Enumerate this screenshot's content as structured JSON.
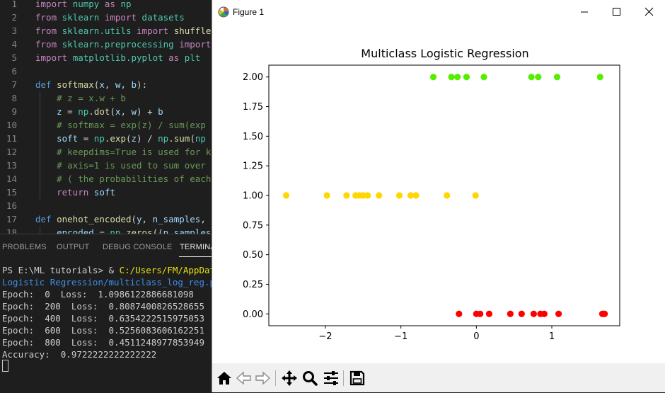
{
  "editor": {
    "lines": [
      {
        "n": "1",
        "tokens": [
          [
            "kw",
            "import"
          ],
          [
            "pl",
            " "
          ],
          [
            "mod",
            "numpy"
          ],
          [
            "pl",
            " "
          ],
          [
            "kw",
            "as"
          ],
          [
            "pl",
            " "
          ],
          [
            "mod",
            "np"
          ]
        ]
      },
      {
        "n": "2",
        "tokens": [
          [
            "kw",
            "from"
          ],
          [
            "pl",
            " "
          ],
          [
            "mod",
            "sklearn"
          ],
          [
            "pl",
            " "
          ],
          [
            "kw",
            "import"
          ],
          [
            "pl",
            " "
          ],
          [
            "mod",
            "datasets"
          ]
        ]
      },
      {
        "n": "3",
        "tokens": [
          [
            "kw",
            "from"
          ],
          [
            "pl",
            " "
          ],
          [
            "mod",
            "sklearn.utils"
          ],
          [
            "pl",
            " "
          ],
          [
            "kw",
            "import"
          ],
          [
            "pl",
            " "
          ],
          [
            "fn",
            "shuffle"
          ]
        ]
      },
      {
        "n": "4",
        "tokens": [
          [
            "kw",
            "from"
          ],
          [
            "pl",
            " "
          ],
          [
            "mod",
            "sklearn.preprocessing"
          ],
          [
            "pl",
            " "
          ],
          [
            "kw",
            "import"
          ]
        ]
      },
      {
        "n": "5",
        "tokens": [
          [
            "kw",
            "import"
          ],
          [
            "pl",
            " "
          ],
          [
            "mod",
            "matplotlib.pyplot"
          ],
          [
            "pl",
            " "
          ],
          [
            "kw",
            "as"
          ],
          [
            "pl",
            " "
          ],
          [
            "mod",
            "plt"
          ]
        ]
      },
      {
        "n": "6",
        "tokens": []
      },
      {
        "n": "7",
        "tokens": [
          [
            "kw2",
            "def"
          ],
          [
            "pl",
            " "
          ],
          [
            "fn",
            "softmax"
          ],
          [
            "pl",
            "("
          ],
          [
            "id",
            "x"
          ],
          [
            "pl",
            ", "
          ],
          [
            "id",
            "w"
          ],
          [
            "pl",
            ", "
          ],
          [
            "id",
            "b"
          ],
          [
            "pl",
            "):"
          ]
        ]
      },
      {
        "n": "8",
        "tokens": [
          [
            "pl",
            "    "
          ],
          [
            "cm",
            "# z = x.w + b"
          ]
        ]
      },
      {
        "n": "9",
        "tokens": [
          [
            "pl",
            "    "
          ],
          [
            "id",
            "z"
          ],
          [
            "pl",
            " = "
          ],
          [
            "mod",
            "np"
          ],
          [
            "pl",
            "."
          ],
          [
            "fn",
            "dot"
          ],
          [
            "pl",
            "("
          ],
          [
            "id",
            "x"
          ],
          [
            "pl",
            ", "
          ],
          [
            "id",
            "w"
          ],
          [
            "pl",
            ") + "
          ],
          [
            "id",
            "b"
          ]
        ]
      },
      {
        "n": "10",
        "tokens": [
          [
            "pl",
            "    "
          ],
          [
            "cm",
            "# softmax = exp(z) / sum(exp"
          ]
        ]
      },
      {
        "n": "11",
        "tokens": [
          [
            "pl",
            "    "
          ],
          [
            "id",
            "soft"
          ],
          [
            "pl",
            " = "
          ],
          [
            "mod",
            "np"
          ],
          [
            "pl",
            "."
          ],
          [
            "fn",
            "exp"
          ],
          [
            "pl",
            "("
          ],
          [
            "id",
            "z"
          ],
          [
            "pl",
            ") / "
          ],
          [
            "mod",
            "np"
          ],
          [
            "pl",
            "."
          ],
          [
            "fn",
            "sum"
          ],
          [
            "pl",
            "("
          ],
          [
            "mod",
            "np"
          ]
        ]
      },
      {
        "n": "12",
        "tokens": [
          [
            "pl",
            "    "
          ],
          [
            "cm",
            "# keepdims=True is used for k"
          ]
        ]
      },
      {
        "n": "13",
        "tokens": [
          [
            "pl",
            "    "
          ],
          [
            "cm",
            "# axis=1 is used to sum over"
          ]
        ]
      },
      {
        "n": "14",
        "tokens": [
          [
            "pl",
            "    "
          ],
          [
            "cm",
            "# ( the probabilities of each"
          ]
        ]
      },
      {
        "n": "15",
        "tokens": [
          [
            "pl",
            "    "
          ],
          [
            "kw",
            "return"
          ],
          [
            "pl",
            " "
          ],
          [
            "id",
            "soft"
          ]
        ]
      },
      {
        "n": "16",
        "tokens": []
      },
      {
        "n": "17",
        "tokens": [
          [
            "kw2",
            "def"
          ],
          [
            "pl",
            " "
          ],
          [
            "fn",
            "onehot_encoded"
          ],
          [
            "pl",
            "("
          ],
          [
            "id",
            "y"
          ],
          [
            "pl",
            ", "
          ],
          [
            "id",
            "n_samples"
          ],
          [
            "pl",
            ","
          ]
        ]
      },
      {
        "n": "18",
        "tokens": [
          [
            "pl",
            "    "
          ],
          [
            "id",
            "encoded"
          ],
          [
            "pl",
            " = "
          ],
          [
            "mod",
            "np"
          ],
          [
            "pl",
            "."
          ],
          [
            "fn",
            "zeros"
          ],
          [
            "pl",
            "(("
          ],
          [
            "id",
            "n_samples"
          ]
        ]
      }
    ]
  },
  "panel": {
    "tabs": [
      "PROBLEMS",
      "OUTPUT",
      "DEBUG CONSOLE",
      "TERMINAL"
    ],
    "terminal": {
      "prompt": "PS E:\\ML tutorials> & ",
      "cmd_path": "C:/Users/FM/AppData/L",
      "script_path": "Logistic Regression/multiclass_log_reg.py\"",
      "lines": [
        "Epoch:  0  Loss:  1.0986122886681098",
        "Epoch:  200  Loss:  0.8087400826528655",
        "Epoch:  400  Loss:  0.6354222515975053",
        "Epoch:  600  Loss:  0.5256083606162251",
        "Epoch:  800  Loss:  0.4511248977853949",
        "Accuracy:  0.9722222222222222"
      ]
    }
  },
  "figure": {
    "window_title": "Figure 1",
    "toolbar_icons": [
      "home-icon",
      "back-icon",
      "forward-icon",
      "pan-icon",
      "zoom-icon",
      "configure-subplots-icon",
      "save-icon"
    ]
  },
  "chart_data": {
    "type": "scatter",
    "title": "Multiclass Logistic Regression",
    "xlabel": "",
    "ylabel": "",
    "xlim": [
      -2.75,
      1.9
    ],
    "ylim": [
      -0.1,
      2.1
    ],
    "xticks": [
      -2,
      -1,
      0,
      1
    ],
    "xtick_labels": [
      "−2",
      "−1",
      "0",
      "1"
    ],
    "yticks": [
      0.0,
      0.25,
      0.5,
      0.75,
      1.0,
      1.25,
      1.5,
      1.75,
      2.0
    ],
    "ytick_labels": [
      "0.00",
      "0.25",
      "0.50",
      "0.75",
      "1.00",
      "1.25",
      "1.50",
      "1.75",
      "2.00"
    ],
    "grid": false,
    "legend": false,
    "colors": {
      "class_0": "#ff0000",
      "class_1": "#ffd700",
      "class_2": "#55ee00"
    },
    "series": [
      {
        "class": 2,
        "x": [
          -0.57,
          -0.33,
          -0.25,
          -0.13,
          0.1,
          0.73,
          0.82,
          1.07,
          1.64
        ],
        "y": [
          2,
          2,
          2,
          2,
          2,
          2,
          2,
          2,
          2
        ]
      },
      {
        "class": 1,
        "x": [
          -2.52,
          -1.98,
          -1.72,
          -1.6,
          -1.55,
          -1.5,
          -1.44,
          -1.29,
          -1.02,
          -0.87,
          -0.8,
          -0.39,
          -0.01
        ],
        "y": [
          1,
          1,
          1,
          1,
          1,
          1,
          1,
          1,
          1,
          1,
          1,
          1,
          1
        ]
      },
      {
        "class": 0,
        "x": [
          -0.23,
          0.0,
          0.05,
          0.17,
          0.45,
          0.6,
          0.76,
          0.85,
          0.9,
          1.09,
          1.67,
          1.7
        ],
        "y": [
          0,
          0,
          0,
          0,
          0,
          0,
          0,
          0,
          0,
          0,
          0,
          0
        ]
      }
    ]
  }
}
